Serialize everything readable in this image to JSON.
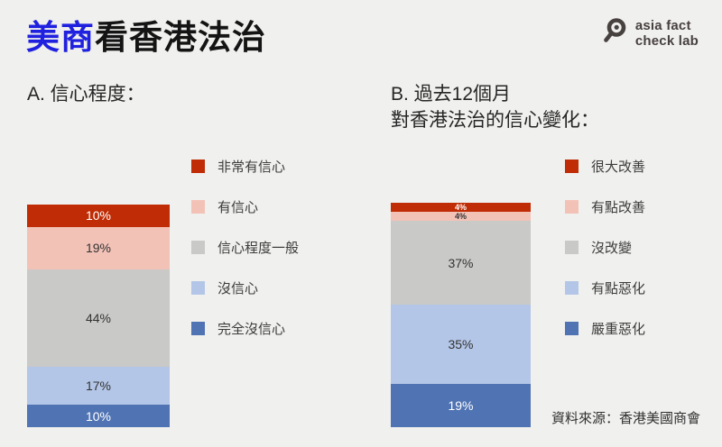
{
  "page": {
    "background": "#f0f0ee"
  },
  "header": {
    "title_highlight": "美商",
    "title_rest": "看香港法治",
    "highlight_color": "#2021df"
  },
  "logo": {
    "icon": "magnifier-icon",
    "line1": "asia fact",
    "line2": "check lab",
    "color": "#474140"
  },
  "source": "資料來源：香港美國商會",
  "chart_data": [
    {
      "type": "bar",
      "subtype": "stacked-column",
      "title": "A. 信心程度：",
      "categories": [
        "非常有信心",
        "有信心",
        "信心程度一般",
        "沒信心",
        "完全沒信心"
      ],
      "values": [
        10,
        19,
        44,
        17,
        10
      ],
      "unit": "%",
      "colors": [
        "#bf2c05",
        "#f3c2b7",
        "#c9c9c7",
        "#b3c6e7",
        "#4f73b3"
      ],
      "label_colors": [
        "#ffffff",
        "#333333",
        "#333333",
        "#333333",
        "#ffffff"
      ],
      "legend_position": "right",
      "grid": false
    },
    {
      "type": "bar",
      "subtype": "stacked-column",
      "title": "B. 過去12個月\n對香港法治的信心變化：",
      "categories": [
        "很大改善",
        "有點改善",
        "沒改變",
        "有點惡化",
        "嚴重惡化"
      ],
      "values": [
        4,
        4,
        37,
        35,
        19
      ],
      "unit": "%",
      "colors": [
        "#bf2c05",
        "#f3c2b7",
        "#c9c9c7",
        "#b3c6e7",
        "#4f73b3"
      ],
      "label_colors": [
        "#ffffff",
        "#333333",
        "#333333",
        "#333333",
        "#ffffff"
      ],
      "legend_position": "right",
      "grid": false
    }
  ]
}
